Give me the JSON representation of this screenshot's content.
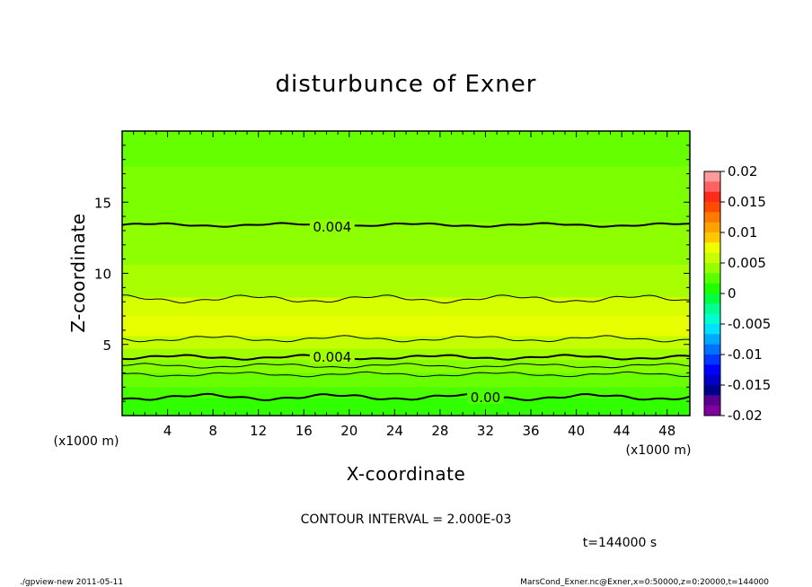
{
  "chart_data": {
    "type": "heatmap",
    "title": "disturbunce of Exner",
    "xlabel": "X-coordinate",
    "ylabel": "Z-coordinate",
    "x_unit_left": "(x1000 m)",
    "x_unit_right": "(x1000 m)",
    "xlim": [
      0,
      50
    ],
    "ylim": [
      0,
      20
    ],
    "x_ticks": [
      4,
      8,
      12,
      16,
      20,
      24,
      28,
      32,
      36,
      40,
      44,
      48
    ],
    "y_ticks": [
      5,
      10,
      15
    ],
    "colorbar": {
      "ticks": [
        "0.02",
        "0.015",
        "0.01",
        "0.005",
        "0",
        "-0.005",
        "-0.01",
        "-0.015",
        "-0.02"
      ],
      "range": [
        -0.02,
        0.02
      ],
      "colors_top_to_bottom": [
        "#ff9a9a",
        "#ff6060",
        "#ff2a1a",
        "#ff4a00",
        "#ff7a00",
        "#ffa200",
        "#ffc800",
        "#f0ff00",
        "#c8ff00",
        "#96ff00",
        "#5aff00",
        "#20ff00",
        "#00ff40",
        "#00ff90",
        "#00ffd0",
        "#00e0ff",
        "#00a8ff",
        "#0070ff",
        "#0038ff",
        "#0000ff",
        "#0000c8",
        "#00008a",
        "#5a0090",
        "#8000a0"
      ]
    },
    "bands_top_to_bottom": [
      {
        "z_top": 20,
        "z_bottom": 17.5,
        "color": "#66ff00"
      },
      {
        "z_top": 17.5,
        "z_bottom": 13.6,
        "color": "#7cff00"
      },
      {
        "z_top": 13.6,
        "z_bottom": 10.6,
        "color": "#8eff00"
      },
      {
        "z_top": 10.6,
        "z_bottom": 8.3,
        "color": "#a8ff00"
      },
      {
        "z_top": 8.3,
        "z_bottom": 7.0,
        "color": "#d8ff00"
      },
      {
        "z_top": 7.0,
        "z_bottom": 5.6,
        "color": "#e8ff00"
      },
      {
        "z_top": 5.6,
        "z_bottom": 4.7,
        "color": "#c4ff00"
      },
      {
        "z_top": 4.7,
        "z_bottom": 3.9,
        "color": "#a2ff00"
      },
      {
        "z_top": 3.9,
        "z_bottom": 3.0,
        "color": "#86ff00"
      },
      {
        "z_top": 3.0,
        "z_bottom": 2.0,
        "color": "#6aff00"
      },
      {
        "z_top": 2.0,
        "z_bottom": 1.2,
        "color": "#4cff00"
      },
      {
        "z_top": 1.2,
        "z_bottom": 0,
        "color": "#30ff00"
      }
    ],
    "contours": [
      {
        "z": 13.4,
        "bold": true,
        "amp": 0.12,
        "label": "0.004",
        "label_x": 18.5
      },
      {
        "z": 8.2,
        "bold": false,
        "amp": 0.25,
        "label": "",
        "label_x": null
      },
      {
        "z": 5.4,
        "bold": false,
        "amp": 0.2,
        "label": "",
        "label_x": null
      },
      {
        "z": 4.1,
        "bold": true,
        "amp": 0.15,
        "label": "0.004",
        "label_x": 18.5
      },
      {
        "z": 3.5,
        "bold": false,
        "amp": 0.15,
        "label": "",
        "label_x": null
      },
      {
        "z": 2.9,
        "bold": false,
        "amp": 0.15,
        "label": "",
        "label_x": null
      },
      {
        "z": 1.3,
        "bold": true,
        "amp": 0.2,
        "label": "0.00",
        "label_x": 32.0
      }
    ]
  },
  "info": {
    "contour_interval": "CONTOUR INTERVAL = 2.000E-03",
    "time": "t=144000 s"
  },
  "footer": {
    "left": "./gpview-new   2011-05-11",
    "right": "MarsCond_Exner.nc@Exner,x=0:50000,z=0:20000,t=144000"
  }
}
